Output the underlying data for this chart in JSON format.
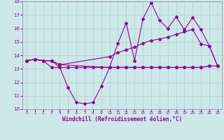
{
  "x_line1": [
    0,
    1,
    2,
    3,
    4,
    5,
    6,
    7,
    8,
    9,
    10,
    11,
    12,
    13,
    14,
    15,
    16,
    17,
    18,
    19,
    20,
    21,
    22,
    23
  ],
  "y_line1": [
    13.6,
    13.7,
    13.6,
    13.6,
    13.1,
    11.6,
    10.5,
    10.4,
    10.5,
    11.7,
    13.1,
    13.1,
    13.1,
    13.1,
    13.1,
    13.1,
    13.1,
    13.1,
    13.1,
    13.1,
    13.1,
    13.1,
    13.2,
    13.2
  ],
  "x_line2": [
    0,
    1,
    2,
    3,
    4,
    5,
    6,
    7,
    8,
    9,
    10,
    11,
    12,
    13,
    14,
    15,
    16,
    17,
    18,
    19,
    20,
    21,
    22,
    23
  ],
  "y_line2": [
    13.6,
    13.7,
    13.6,
    13.1,
    13.1,
    13.1,
    13.1,
    13.1,
    13.1,
    13.1,
    13.1,
    13.1,
    13.1,
    13.1,
    13.1,
    13.1,
    13.1,
    13.1,
    13.1,
    13.1,
    13.1,
    13.1,
    13.2,
    13.2
  ],
  "x_line3": [
    0,
    1,
    2,
    3,
    4,
    10,
    11,
    12,
    13,
    14,
    15,
    16,
    17,
    18,
    19,
    20,
    21,
    22,
    23
  ],
  "y_line3": [
    13.6,
    13.7,
    13.6,
    13.6,
    13.3,
    13.9,
    14.2,
    14.4,
    14.6,
    14.9,
    15.1,
    15.2,
    15.35,
    15.55,
    15.75,
    15.9,
    14.85,
    14.7,
    13.2
  ],
  "x_line4": [
    0,
    1,
    2,
    3,
    4,
    10,
    11,
    12,
    13,
    14,
    15,
    16,
    17,
    18,
    19,
    20,
    21,
    22,
    23
  ],
  "y_line4": [
    13.6,
    13.7,
    13.6,
    13.6,
    13.3,
    13.1,
    14.9,
    16.4,
    13.6,
    16.7,
    17.9,
    16.6,
    16.0,
    16.85,
    15.9,
    16.8,
    15.9,
    14.7,
    13.2
  ],
  "line_color": "#990099",
  "bg_color": "#cce8e8",
  "grid_color": "#aacfcf",
  "xlabel": "Windchill (Refroidissement éolien,°C)",
  "ylim": [
    10,
    18
  ],
  "xlim": [
    -0.5,
    23.5
  ],
  "yticks": [
    10,
    11,
    12,
    13,
    14,
    15,
    16,
    17,
    18
  ],
  "xticks": [
    0,
    1,
    2,
    3,
    4,
    5,
    6,
    7,
    8,
    9,
    10,
    11,
    12,
    13,
    14,
    15,
    16,
    17,
    18,
    19,
    20,
    21,
    22,
    23
  ]
}
